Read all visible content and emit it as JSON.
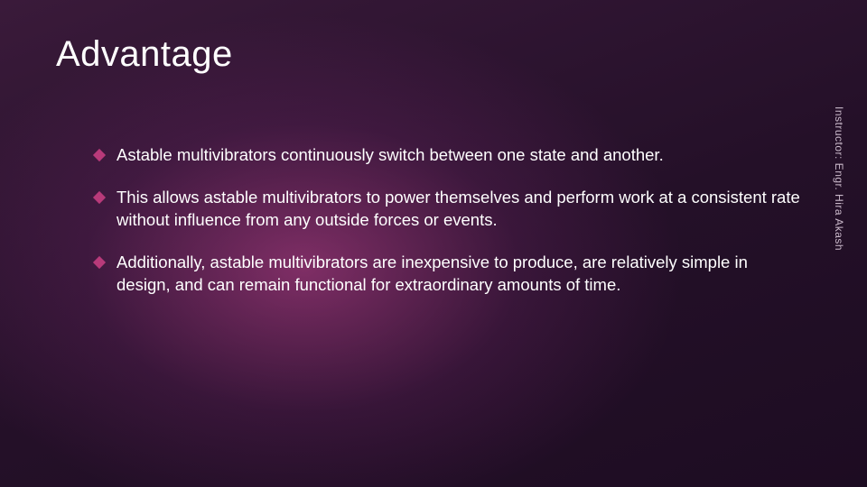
{
  "slide": {
    "title": "Advantage",
    "title_fontsize": 40,
    "title_color": "#ffffff",
    "background": {
      "gradient_stops": [
        "#3a1a3a",
        "#2d1430",
        "#241028",
        "#1d0c22"
      ],
      "glow_center_color": "rgba(200,70,150,0.55)"
    },
    "bullet_marker_color": "#b83a7a",
    "body_fontsize": 18.5,
    "body_color": "#ffffff",
    "bullets": [
      "Astable multivibrators continuously switch between one state and another.",
      "This allows astable multivibrators to power themselves and perform work at a consistent rate without influence from any outside forces or events.",
      "Additionally, astable multivibrators are inexpensive to produce, are relatively simple in design, and can remain functional for extraordinary amounts of time."
    ],
    "sidetext": "Instructor: Engr. Hira Akash",
    "sidetext_fontsize": 12,
    "sidetext_color": "#c9b8c9"
  }
}
